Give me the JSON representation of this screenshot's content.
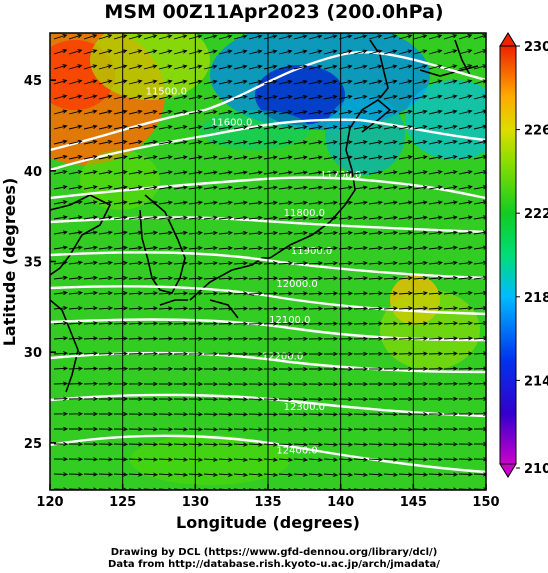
{
  "title": "MSM 00Z11Apr2023 (200.0hPa)",
  "credit_line1": "Drawing by DCL (https://www.gfd-dennou.org/library/dcl/)",
  "credit_line2": "Data from http://database.rish.kyoto-u.ac.jp/arch/jmadata/",
  "map": {
    "xlabel": "Longitude (degrees)",
    "ylabel": "Latitude  (degrees)",
    "xlim": [
      120,
      150
    ],
    "ylim": [
      22.4,
      47.6
    ],
    "xticks": [
      120,
      125,
      130,
      135,
      140,
      145,
      150
    ],
    "yticks": [
      25,
      30,
      35,
      40,
      45
    ],
    "contours": [
      {
        "label": "11500.0",
        "lon": 128.0,
        "lat": 44.2
      },
      {
        "label": "11600.0",
        "lon": 132.5,
        "lat": 42.5
      },
      {
        "label": "11700.0",
        "lon": 140.0,
        "lat": 39.6
      },
      {
        "label": "11800.0",
        "lon": 137.5,
        "lat": 37.5
      },
      {
        "label": "11900.0",
        "lon": 138.0,
        "lat": 35.4
      },
      {
        "label": "12000.0",
        "lon": 137.0,
        "lat": 33.6
      },
      {
        "label": "12100.0",
        "lon": 136.5,
        "lat": 31.6
      },
      {
        "label": "12200.0",
        "lon": 136.0,
        "lat": 29.6
      },
      {
        "label": "12300.0",
        "lon": 137.5,
        "lat": 26.8
      },
      {
        "label": "12400.0",
        "lon": 137.0,
        "lat": 24.4
      }
    ]
  },
  "colorbar": {
    "ticks": [
      230,
      226,
      222,
      218,
      214,
      210
    ],
    "colors": [
      "#cc00cc",
      "#0000dd",
      "#00aaff",
      "#00dd66",
      "#22cc22",
      "#aadd00",
      "#ffaa00",
      "#ff3300",
      "#dd2222"
    ]
  }
}
